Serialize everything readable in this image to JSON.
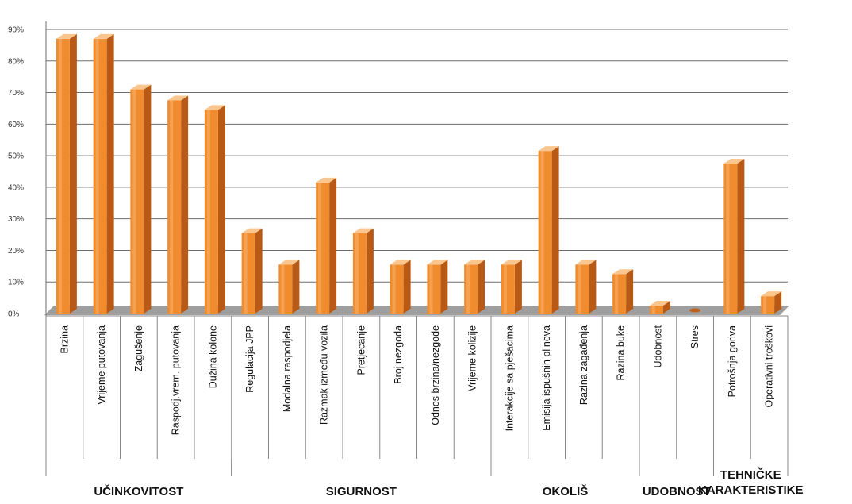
{
  "chart_data": {
    "type": "bar",
    "title": "",
    "xlabel": "",
    "ylabel": "",
    "ylim": [
      0,
      0.9
    ],
    "y_ticks": [
      "0%",
      "10%",
      "20%",
      "30%",
      "40%",
      "50%",
      "60%",
      "70%",
      "80%",
      "90%"
    ],
    "grid": true,
    "bar_color": "#F08C2E",
    "categories": [
      "Brzina",
      "Vrijeme putovanja",
      "Zagušenje",
      "Raspodj.vrem. putovanja",
      "Dužina kolone",
      "Regulacija JPP",
      "Modalna raspodjela",
      "Razmak između vozila",
      "Pretjecanje",
      "Broj nezgoda",
      "Odnos brzina/nezgode",
      "Vrijeme kolizije",
      "Interakcije sa pješacima",
      "Emisija ispušnih plinova",
      "Razina zagađenja",
      "Razina buke",
      "Udobnost",
      "Stres",
      "Potrošnja goriva",
      "Operativni troškovi"
    ],
    "values": [
      0.87,
      0.87,
      0.71,
      0.675,
      0.645,
      0.255,
      0.155,
      0.415,
      0.255,
      0.155,
      0.155,
      0.155,
      0.155,
      0.515,
      0.155,
      0.125,
      0.025,
      0.0,
      0.475,
      0.055
    ],
    "groups": [
      {
        "label": "UČINKOVITOST",
        "start": 0,
        "end": 4
      },
      {
        "label": "SIGURNOST",
        "start": 5,
        "end": 11
      },
      {
        "label": "OKOLIŠ",
        "start": 12,
        "end": 15
      },
      {
        "label": "UDOBNOST",
        "start": 16,
        "end": 17
      },
      {
        "label": "TEHNIČKE KARAKTERISTIKE",
        "start": 18,
        "end": 19
      }
    ]
  }
}
